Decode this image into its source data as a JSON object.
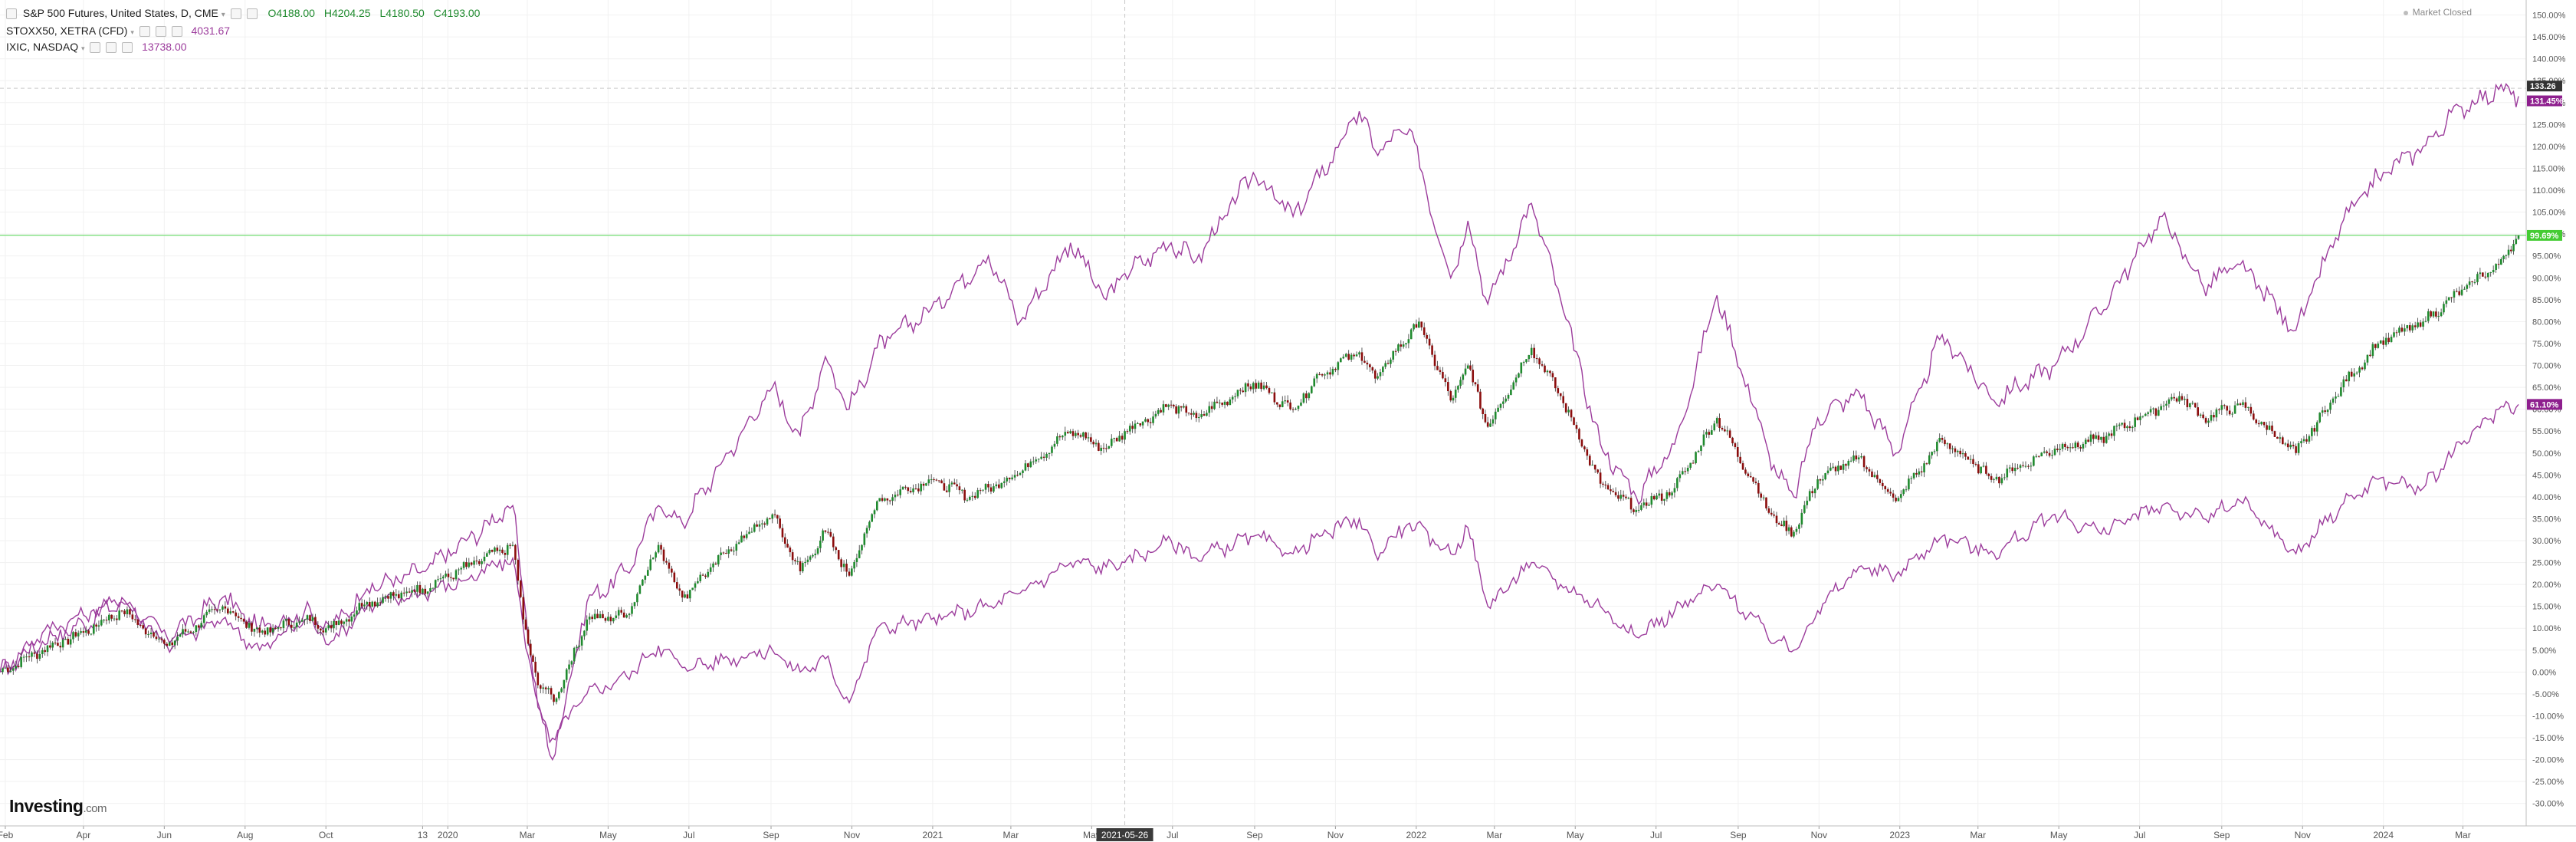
{
  "header": {
    "main": {
      "name": "S&P 500 Futures, United States, D, CME",
      "open": "O4188.00",
      "high": "H4204.25",
      "low": "L4180.50",
      "close": "C4193.00"
    },
    "compare": [
      {
        "name": "STOXX50, XETRA (CFD)",
        "value": "4031.67"
      },
      {
        "name": "IXIC, NASDAQ",
        "value": "13738.00"
      }
    ],
    "market_status": "Market Closed"
  },
  "logo": {
    "brand": "Investing",
    "suffix": ".com"
  },
  "colors": {
    "candle_up": "#1f8a2e",
    "candle_down": "#8b0d0d",
    "compare_line": "#9c3c9c",
    "ref_line": "#7fe07f",
    "background": "#ffffff",
    "axis_text": "#555555"
  },
  "chart_data": {
    "type": "line",
    "title": "S&P 500 Futures, United States, D, CME",
    "ylim": [
      -32.5,
      151.5
    ],
    "y_ticks": [
      "-30.00%",
      "-25.00%",
      "-20.00%",
      "-15.00%",
      "-10.00%",
      "-5.00%",
      "0.00%",
      "5.00%",
      "10.00%",
      "15.00%",
      "20.00%",
      "25.00%",
      "30.00%",
      "35.00%",
      "40.00%",
      "45.00%",
      "50.00%",
      "55.00%",
      "60.00%",
      "65.00%",
      "70.00%",
      "75.00%",
      "80.00%",
      "85.00%",
      "90.00%",
      "95.00%",
      "100.00%",
      "105.00%",
      "110.00%",
      "115.00%",
      "120.00%",
      "125.00%",
      "130.00%",
      "135.00%",
      "140.00%",
      "145.00%",
      "150.00%"
    ],
    "x_labels": [
      {
        "label": "Feb",
        "date": "2019-02-01"
      },
      {
        "label": "Apr",
        "date": "2019-04-01"
      },
      {
        "label": "Jun",
        "date": "2019-06-01"
      },
      {
        "label": "Aug",
        "date": "2019-08-01"
      },
      {
        "label": "Oct",
        "date": "2019-10-01"
      },
      {
        "label": "13",
        "date": "2019-12-13"
      },
      {
        "label": "2020",
        "date": "2020-01-01"
      },
      {
        "label": "Mar",
        "date": "2020-03-01"
      },
      {
        "label": "May",
        "date": "2020-05-01"
      },
      {
        "label": "Jul",
        "date": "2020-07-01"
      },
      {
        "label": "Sep",
        "date": "2020-09-01"
      },
      {
        "label": "Nov",
        "date": "2020-11-01"
      },
      {
        "label": "2021",
        "date": "2021-01-01"
      },
      {
        "label": "Mar",
        "date": "2021-03-01"
      },
      {
        "label": "May",
        "date": "2021-05-01"
      },
      {
        "label": "Jul",
        "date": "2021-07-01"
      },
      {
        "label": "Sep",
        "date": "2021-09-01"
      },
      {
        "label": "Nov",
        "date": "2021-11-01"
      },
      {
        "label": "2022",
        "date": "2022-01-01"
      },
      {
        "label": "Mar",
        "date": "2022-03-01"
      },
      {
        "label": "May",
        "date": "2022-05-01"
      },
      {
        "label": "Jul",
        "date": "2022-07-01"
      },
      {
        "label": "Sep",
        "date": "2022-09-01"
      },
      {
        "label": "Nov",
        "date": "2022-11-01"
      },
      {
        "label": "2023",
        "date": "2023-01-01"
      },
      {
        "label": "Mar",
        "date": "2023-03-01"
      },
      {
        "label": "May",
        "date": "2023-05-01"
      },
      {
        "label": "Jul",
        "date": "2023-07-01"
      },
      {
        "label": "Sep",
        "date": "2023-09-01"
      },
      {
        "label": "Nov",
        "date": "2023-11-01"
      },
      {
        "label": "2024",
        "date": "2024-01-01"
      },
      {
        "label": "Mar",
        "date": "2024-03-01"
      }
    ],
    "x_range": [
      "2019-01-28",
      "2024-04-12"
    ],
    "crosshair": {
      "date": "2021-05-26",
      "label": "2021-05-26"
    },
    "reference_line": {
      "y": 99.69,
      "label": "99.69%",
      "color": "#7fe07f"
    },
    "last_value_labels": [
      {
        "value": 133.26,
        "label": "133.26",
        "fill": "#333333"
      },
      {
        "value": 131.45,
        "label": "131.45%",
        "fill": "#8e1f8e"
      },
      {
        "value": 99.69,
        "label": "99.69%",
        "fill": "#44cc33"
      },
      {
        "value": 61.1,
        "label": "61.10%",
        "fill": "#8e1f8e"
      }
    ],
    "series": [
      {
        "style": "candlestick",
        "points": [
          [
            "2019-01-28",
            0
          ],
          [
            "2019-03-01",
            5
          ],
          [
            "2019-04-01",
            9
          ],
          [
            "2019-04-30",
            14
          ],
          [
            "2019-06-03",
            6
          ],
          [
            "2019-07-15",
            15
          ],
          [
            "2019-08-12",
            9
          ],
          [
            "2019-09-15",
            12
          ],
          [
            "2019-10-05",
            10
          ],
          [
            "2019-11-01",
            16
          ],
          [
            "2019-12-13",
            19
          ],
          [
            "2020-01-15",
            24
          ],
          [
            "2020-02-19",
            29
          ],
          [
            "2020-02-27",
            12
          ],
          [
            "2020-03-09",
            -3
          ],
          [
            "2020-03-23",
            -6
          ],
          [
            "2020-04-15",
            12
          ],
          [
            "2020-05-15",
            13
          ],
          [
            "2020-06-08",
            29
          ],
          [
            "2020-06-26",
            17
          ],
          [
            "2020-07-31",
            28
          ],
          [
            "2020-09-02",
            36
          ],
          [
            "2020-09-23",
            23
          ],
          [
            "2020-10-12",
            32
          ],
          [
            "2020-10-30",
            22
          ],
          [
            "2020-11-20",
            39
          ],
          [
            "2020-12-31",
            44
          ],
          [
            "2021-01-29",
            40
          ],
          [
            "2021-03-04",
            45
          ],
          [
            "2021-04-15",
            55
          ],
          [
            "2021-05-12",
            51
          ],
          [
            "2021-05-26",
            55
          ],
          [
            "2021-06-30",
            61
          ],
          [
            "2021-07-19",
            58
          ],
          [
            "2021-08-31",
            66
          ],
          [
            "2021-09-30",
            60
          ],
          [
            "2021-10-20",
            68
          ],
          [
            "2021-11-19",
            73
          ],
          [
            "2021-12-01",
            67
          ],
          [
            "2022-01-03",
            80
          ],
          [
            "2022-01-27",
            62
          ],
          [
            "2022-02-09",
            70
          ],
          [
            "2022-02-24",
            56
          ],
          [
            "2022-03-29",
            74
          ],
          [
            "2022-04-20",
            63
          ],
          [
            "2022-05-20",
            43
          ],
          [
            "2022-06-16",
            37
          ],
          [
            "2022-07-15",
            42
          ],
          [
            "2022-08-16",
            58
          ],
          [
            "2022-09-30",
            34
          ],
          [
            "2022-10-13",
            32
          ],
          [
            "2022-10-31",
            44
          ],
          [
            "2022-12-01",
            49
          ],
          [
            "2022-12-29",
            39
          ],
          [
            "2023-02-02",
            53
          ],
          [
            "2023-03-13",
            44
          ],
          [
            "2023-04-28",
            51
          ],
          [
            "2023-05-31",
            53
          ],
          [
            "2023-07-31",
            63
          ],
          [
            "2023-08-18",
            58
          ],
          [
            "2023-09-15",
            61
          ],
          [
            "2023-10-27",
            50
          ],
          [
            "2023-11-30",
            65
          ],
          [
            "2023-12-28",
            75
          ],
          [
            "2024-01-31",
            80
          ],
          [
            "2024-03-08",
            89
          ],
          [
            "2024-03-28",
            93
          ],
          [
            "2024-04-12",
            99.69
          ]
        ]
      },
      {
        "style": "line",
        "points": [
          [
            "2019-01-28",
            0
          ],
          [
            "2019-03-01",
            7
          ],
          [
            "2019-04-01",
            11
          ],
          [
            "2019-04-30",
            16
          ],
          [
            "2019-06-03",
            8
          ],
          [
            "2019-07-15",
            17
          ],
          [
            "2019-08-12",
            10
          ],
          [
            "2019-09-15",
            14
          ],
          [
            "2019-10-05",
            10
          ],
          [
            "2019-11-01",
            19
          ],
          [
            "2019-12-13",
            23
          ],
          [
            "2020-01-15",
            30
          ],
          [
            "2020-02-19",
            38
          ],
          [
            "2020-02-27",
            18
          ],
          [
            "2020-03-09",
            -8
          ],
          [
            "2020-03-20",
            -20
          ],
          [
            "2020-04-15",
            16
          ],
          [
            "2020-05-15",
            23
          ],
          [
            "2020-06-08",
            38
          ],
          [
            "2020-06-26",
            34
          ],
          [
            "2020-07-31",
            50
          ],
          [
            "2020-09-02",
            65
          ],
          [
            "2020-09-23",
            54
          ],
          [
            "2020-10-12",
            72
          ],
          [
            "2020-10-30",
            60
          ],
          [
            "2020-11-20",
            74
          ],
          [
            "2020-12-31",
            83
          ],
          [
            "2021-02-12",
            95
          ],
          [
            "2021-03-08",
            80
          ],
          [
            "2021-04-15",
            98
          ],
          [
            "2021-05-12",
            85
          ],
          [
            "2021-05-26",
            91
          ],
          [
            "2021-06-30",
            98
          ],
          [
            "2021-07-19",
            94
          ],
          [
            "2021-08-31",
            114
          ],
          [
            "2021-09-30",
            104
          ],
          [
            "2021-10-20",
            113
          ],
          [
            "2021-11-19",
            128
          ],
          [
            "2021-12-01",
            119
          ],
          [
            "2021-12-27",
            124
          ],
          [
            "2022-01-27",
            90
          ],
          [
            "2022-02-09",
            103
          ],
          [
            "2022-02-24",
            84
          ],
          [
            "2022-03-29",
            107
          ],
          [
            "2022-04-20",
            85
          ],
          [
            "2022-05-20",
            52
          ],
          [
            "2022-06-16",
            40
          ],
          [
            "2022-07-15",
            52
          ],
          [
            "2022-08-16",
            86
          ],
          [
            "2022-09-30",
            45
          ],
          [
            "2022-10-13",
            40
          ],
          [
            "2022-10-31",
            58
          ],
          [
            "2022-12-01",
            64
          ],
          [
            "2022-12-29",
            50
          ],
          [
            "2023-02-02",
            77
          ],
          [
            "2023-03-13",
            62
          ],
          [
            "2023-04-28",
            70
          ],
          [
            "2023-05-31",
            82
          ],
          [
            "2023-07-18",
            104
          ],
          [
            "2023-08-18",
            88
          ],
          [
            "2023-09-15",
            93
          ],
          [
            "2023-10-27",
            78
          ],
          [
            "2023-11-30",
            102
          ],
          [
            "2023-12-28",
            113
          ],
          [
            "2024-01-31",
            120
          ],
          [
            "2024-02-29",
            129
          ],
          [
            "2024-03-28",
            133
          ],
          [
            "2024-04-12",
            131.45
          ]
        ]
      },
      {
        "style": "line",
        "points": [
          [
            "2019-01-28",
            0
          ],
          [
            "2019-03-01",
            9
          ],
          [
            "2019-04-01",
            13
          ],
          [
            "2019-04-30",
            17
          ],
          [
            "2019-06-03",
            6
          ],
          [
            "2019-07-15",
            12
          ],
          [
            "2019-08-12",
            5
          ],
          [
            "2019-09-15",
            12
          ],
          [
            "2019-10-05",
            7
          ],
          [
            "2019-11-01",
            15
          ],
          [
            "2019-12-13",
            18
          ],
          [
            "2020-01-15",
            21
          ],
          [
            "2020-02-19",
            26
          ],
          [
            "2020-02-27",
            10
          ],
          [
            "2020-03-09",
            -7
          ],
          [
            "2020-03-18",
            -16
          ],
          [
            "2020-04-15",
            -5
          ],
          [
            "2020-05-15",
            -1
          ],
          [
            "2020-06-08",
            6
          ],
          [
            "2020-06-26",
            1
          ],
          [
            "2020-07-31",
            3
          ],
          [
            "2020-09-02",
            5
          ],
          [
            "2020-09-23",
            0
          ],
          [
            "2020-10-12",
            3
          ],
          [
            "2020-10-30",
            -7
          ],
          [
            "2020-11-20",
            10
          ],
          [
            "2020-12-31",
            12
          ],
          [
            "2021-02-12",
            15
          ],
          [
            "2021-03-08",
            18
          ],
          [
            "2021-04-15",
            25
          ],
          [
            "2021-05-12",
            24
          ],
          [
            "2021-05-26",
            25
          ],
          [
            "2021-06-30",
            30
          ],
          [
            "2021-07-19",
            26
          ],
          [
            "2021-08-31",
            31
          ],
          [
            "2021-09-30",
            27
          ],
          [
            "2021-10-20",
            31
          ],
          [
            "2021-11-19",
            35
          ],
          [
            "2021-12-01",
            27
          ],
          [
            "2021-12-27",
            34
          ],
          [
            "2022-01-27",
            27
          ],
          [
            "2022-02-09",
            33
          ],
          [
            "2022-02-24",
            15
          ],
          [
            "2022-03-29",
            25
          ],
          [
            "2022-04-20",
            20
          ],
          [
            "2022-05-20",
            15
          ],
          [
            "2022-06-16",
            8
          ],
          [
            "2022-07-15",
            14
          ],
          [
            "2022-08-16",
            20
          ],
          [
            "2022-09-30",
            7
          ],
          [
            "2022-10-13",
            5
          ],
          [
            "2022-10-31",
            14
          ],
          [
            "2022-12-01",
            24
          ],
          [
            "2022-12-29",
            22
          ],
          [
            "2023-02-02",
            31
          ],
          [
            "2023-03-13",
            27
          ],
          [
            "2023-04-28",
            36
          ],
          [
            "2023-05-31",
            32
          ],
          [
            "2023-07-18",
            38
          ],
          [
            "2023-08-18",
            35
          ],
          [
            "2023-09-15",
            39
          ],
          [
            "2023-10-27",
            27
          ],
          [
            "2023-11-30",
            38
          ],
          [
            "2023-12-28",
            44
          ],
          [
            "2024-01-31",
            42
          ],
          [
            "2024-02-29",
            52
          ],
          [
            "2024-03-28",
            60
          ],
          [
            "2024-04-12",
            61.1
          ]
        ]
      }
    ]
  }
}
